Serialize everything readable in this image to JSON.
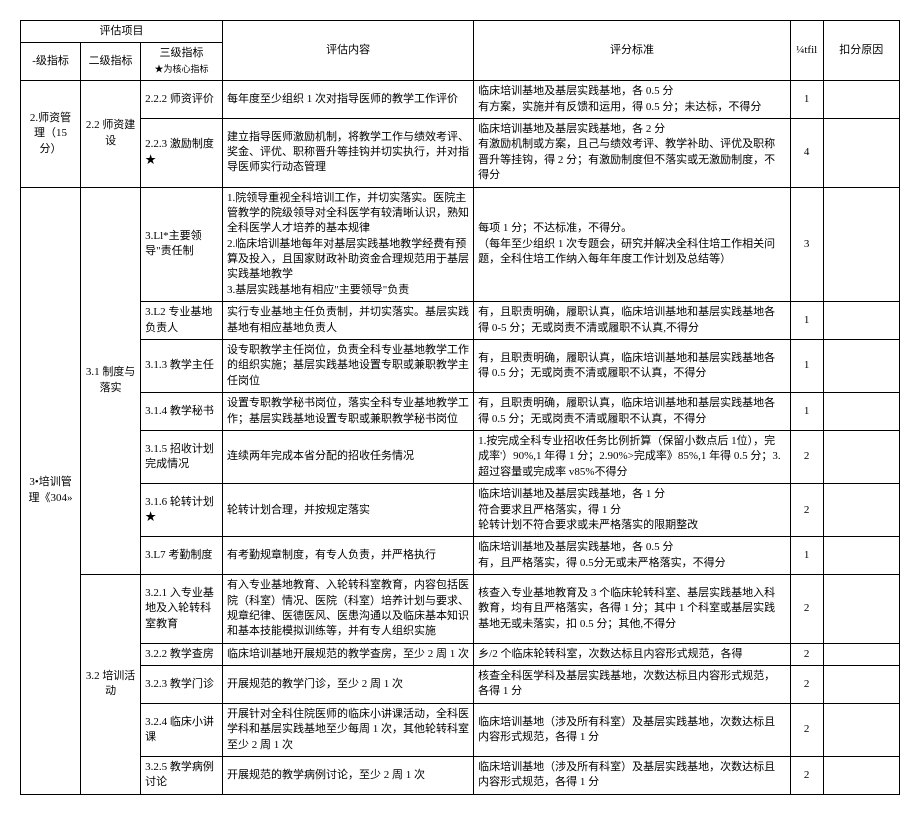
{
  "headers": {
    "group": "评估项目",
    "h1": "-级指标",
    "h2": "二级指标",
    "h3": "三级指标",
    "h3sub": "★为核心指标",
    "content": "评估内容",
    "standard": "评分标准",
    "score": "¼tfil",
    "reason": "扣分原因"
  },
  "lv1": {
    "a": "2.师资管理（15 分）",
    "b": "3•培训管理《304»"
  },
  "lv2": {
    "a": "2.2 师资建设",
    "b": "3.1 制度与落实",
    "c": "3.2 培训活动"
  },
  "rows": [
    {
      "l3": "2.2.2 师资评价",
      "content": "每年度至少组织 1 次对指导医师的教学工作评价",
      "standard": "临床培训基地及基层实践基地，各 0.5 分\n有方案，实施并有反馈和运用，得 0.5 分；未达标，不得分",
      "score": "1"
    },
    {
      "l3": "2.2.3 激励制度★",
      "content": "建立指导医师激励机制，将教学工作与绩效考评、奖金、评优、职称晋升等挂钩并切实执行，并对指导医师实行动态管理",
      "standard": "临床培训基地及基层实践基地，各 2 分\n有激励机制或方案，且己与绩效考评、教学补助、评优及职称晋升等挂钩，得 2 分；有激励制度但不落实或无激励制度，不得分",
      "score": "4"
    },
    {
      "l3": "3.Ll*主要领导\"责任制",
      "content": "1.院领导重视全科培训工作，并切实落实。医院主管教学的院级领导对全科医学有较清晰认识，熟知全科医学人才培养的基本规律\n2.临床培训基地每年对基层实践基地教学经费有预算及投入，且国家财政补助资金合理规范用于基层实践基地教学\n3.基层实践基地有相应\"主要领导\"负责",
      "standard": "每项 1 分；不达标准，不得分。\n（每年至少组织 1 次专题会，研究并解决全科住培工作相关问题，全科住培工作纳入每年年度工作计划及总结等）",
      "score": "3"
    },
    {
      "l3": "3.L2 专业基地负责人",
      "content": "实行专业基地主任负责制，并切实落实。基层实践基地有相应基地负责人",
      "standard": "有，且职责明确，履职认真，临床培训基地和基层实践基地各得 0-5 分；无或岗责不清或履职不认真,不得分",
      "score": "1"
    },
    {
      "l3": "3.1.3 教学主任",
      "content": "设专职教学主任岗位，负责全科专业基地教学工作的组织实施；基层实践基地设置专职或兼职教学主任岗位",
      "standard": "有，且职责明确，履职认真，临床培训基地和基层实践基地各得 0.5 分；无或岗责不清或履职不认真，不得分",
      "score": "1"
    },
    {
      "l3": "3.1.4 教学秘书",
      "content": "设置专职教学秘书岗位，落实全科专业基地教学工作；基层实践基地设置专职或兼职教学秘书岗位",
      "standard": "有，且职责明确，履职认真，临床培训基地和基层实践基地各得 0.5 分；无或岗责不清或履职不认真，不得分",
      "score": "1"
    },
    {
      "l3": "3.1.5 招收计划完成情况",
      "content": "连续两年完成本省分配的招收任务情况",
      "standard": "1.按完成全科专业招收任务比例折算（保留小数点后 1位），完成率'）90%,1 年得 1 分；2.90%>完成率》85%,1 年得 0.5 分；3.超过容量或完成率 v85%不得分",
      "score": "2"
    },
    {
      "l3": "3.1.6 轮转计划★",
      "content": "轮转计划合理，并按规定落实",
      "standard": "临床培训基地及基层实践基地，各 1 分\n符合要求且严格落实，得 1 分\n轮转计划不符合要求或未严格落实的限期整改",
      "score": "2"
    },
    {
      "l3": "3.L7 考勤制度",
      "content": "有考勤规章制度，有专人负责，并严格执行",
      "standard": "临床培训基地及基层实践基地，各 0.5 分\n有，且严格落实，得 0.5分无或未严格落实，不得分",
      "score": "1"
    },
    {
      "l3": "3.2.1 入专业基地及入轮转科室教育",
      "content": "有入专业基地教育、入轮转科室教育，内容包括医院（科室）情况、医院（科室）培养计划与要求、规章纪律、医德医风、医患沟通以及临床基本知识和基本技能模拟训练等，并有专人组织实施",
      "standard": "核查入专业基地教育及 3 个临床轮转科室、基层实践基地入科教育，均有且严格落实，各得 1 分；其中 1 个科室或基层实践基地无或未落实，扣 0.5 分；其他,不得分",
      "score": "2"
    },
    {
      "l3": "3.2.2 教学查房",
      "content": "临床培训基地开展规范的教学查房，至少 2 周 1 次",
      "standard": "乡/2 个临床轮转科室，次数达标且内容形式规范，各得",
      "score": "2"
    },
    {
      "l3": "3.2.3 教学门诊",
      "content": "开展规范的教学门诊，至少 2 周 1 次",
      "standard": "核查全科医学科及基层实践基地，次数达标且内容形式规范，各得 1 分",
      "score": "2"
    },
    {
      "l3": "3.2.4 临床小讲课",
      "content": "开展针对全科住院医师的临床小讲课活动，全科医学科和基层实践基地至少每周 1 次，其他轮转科室至少 2 周 1 次",
      "standard": "临床培训基地（涉及所有科室）及基层实践基地，次数达标且内容形式规范，各得 1 分",
      "score": "2"
    },
    {
      "l3": "3.2.5 教学病例讨论",
      "content": "开展规范的教学病例讨论，至少 2 周 1 次",
      "standard": "临床培训基地（涉及所有科室）及基层实践基地，次数达标且内容形式规范，各得 1 分",
      "score": "2"
    }
  ]
}
